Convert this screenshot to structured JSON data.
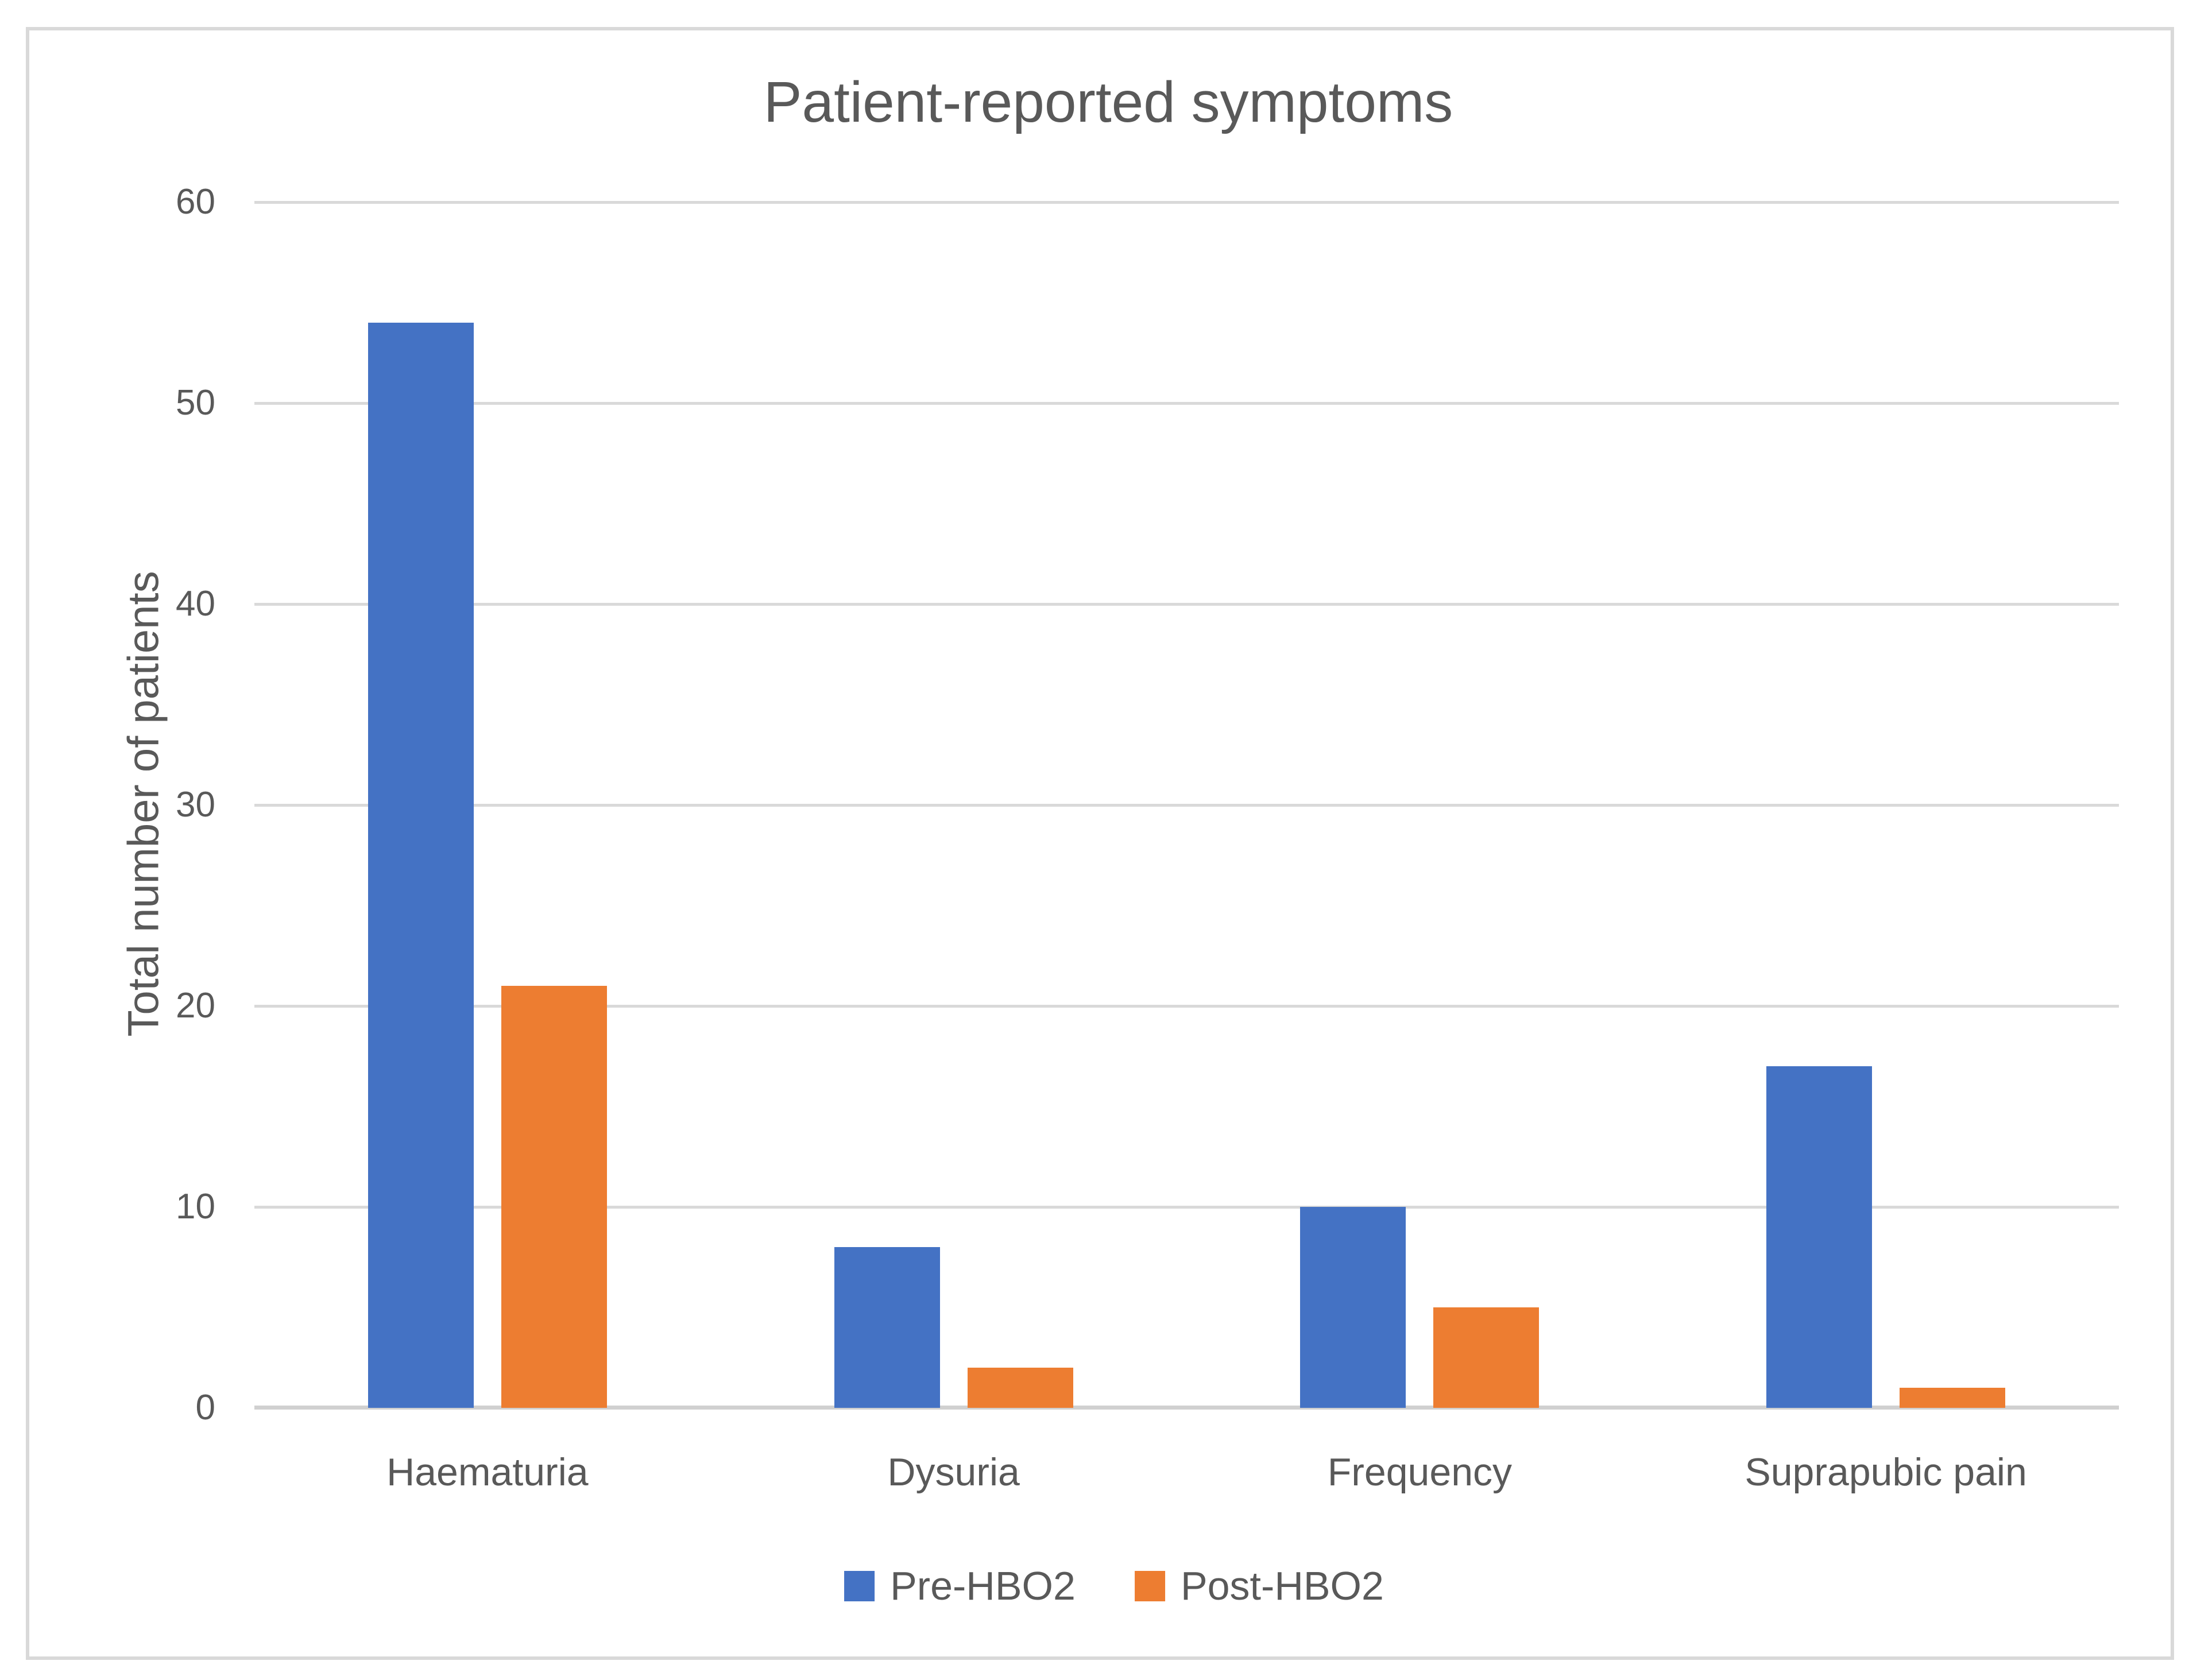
{
  "chart_data": {
    "type": "bar",
    "title": "Patient-reported symptoms",
    "ylabel": "Total number of patients",
    "xlabel": "",
    "categories": [
      "Haematuria",
      "Dysuria",
      "Frequency",
      "Suprapubic pain"
    ],
    "series": [
      {
        "name": "Pre-HBO2",
        "color": "#4472C4",
        "values": [
          54,
          8,
          10,
          17
        ]
      },
      {
        "name": "Post-HBO2",
        "color": "#ED7D31",
        "values": [
          21,
          2,
          5,
          1
        ]
      }
    ],
    "ylim": [
      0,
      60
    ],
    "yticks": [
      0,
      10,
      20,
      30,
      40,
      50,
      60
    ],
    "grid": true,
    "legend_position": "bottom"
  },
  "style": {
    "gridline_color": "#D9D9D9",
    "axis_line_color": "#D0D0D0",
    "border_color": "#D9D9D9",
    "text_color": "#595959",
    "background_color": "#FFFFFF"
  }
}
